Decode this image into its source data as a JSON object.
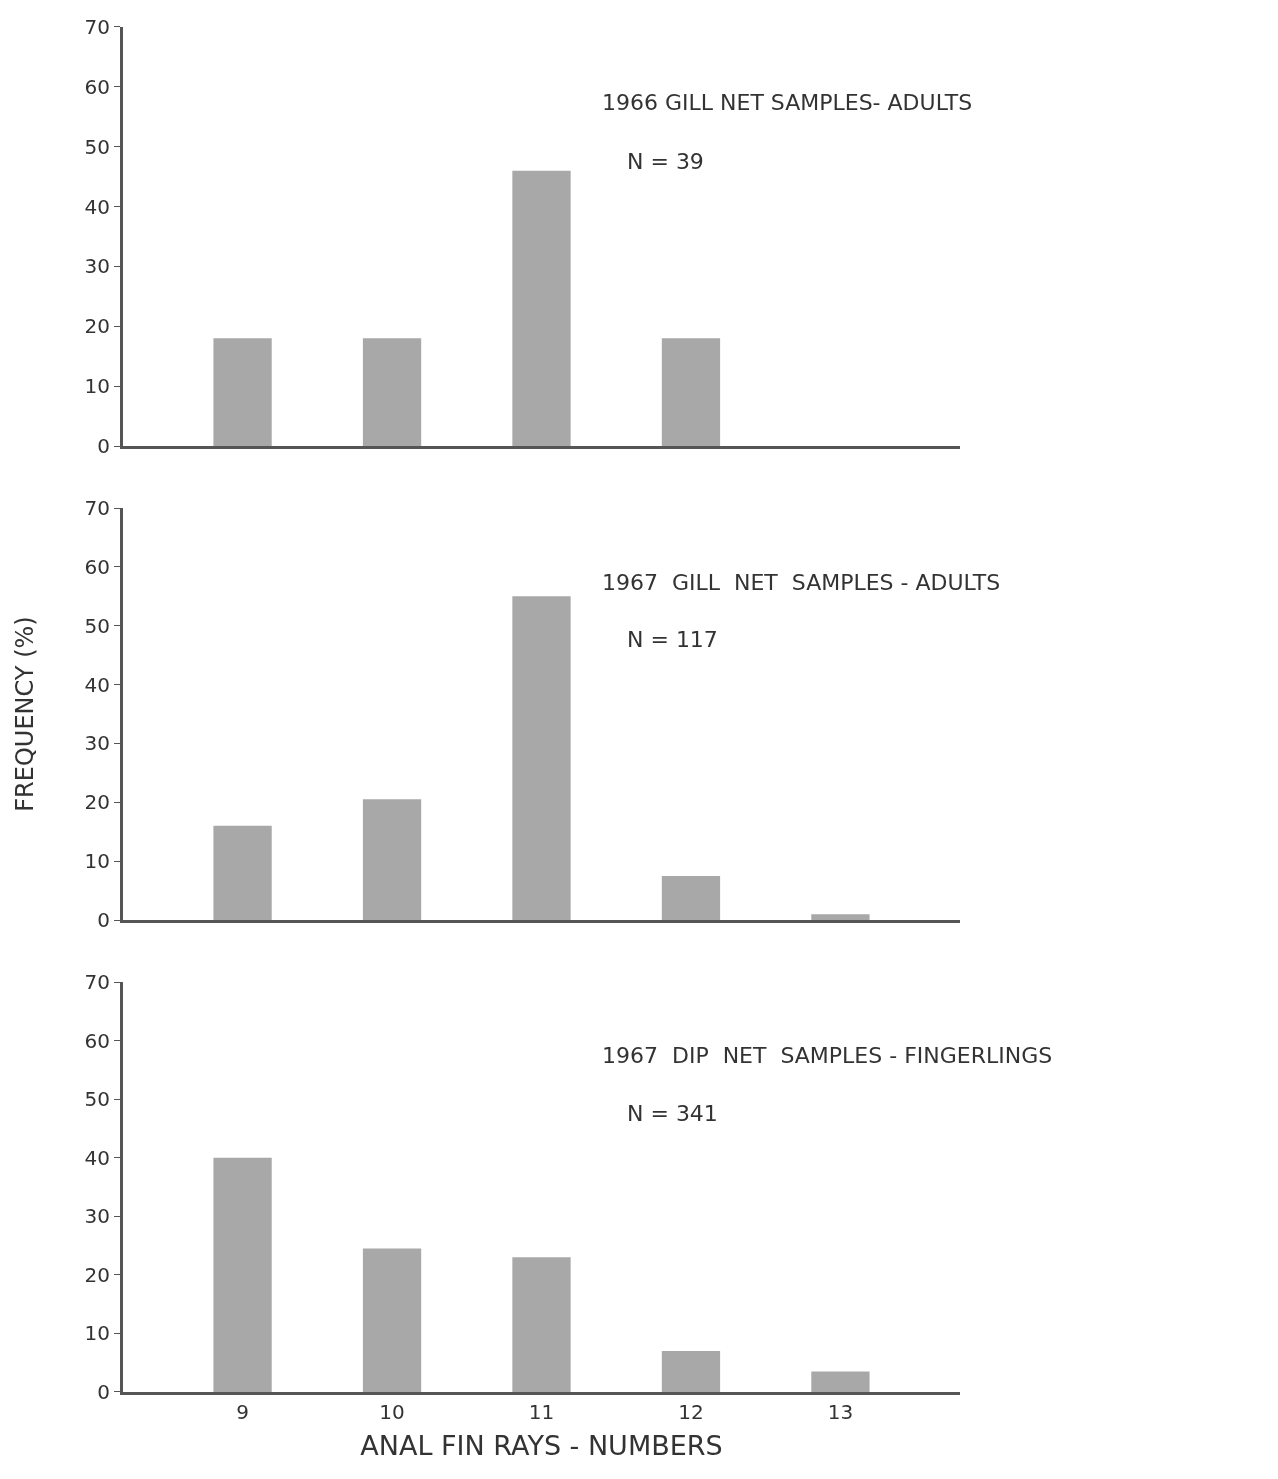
{
  "chart_data": [
    {
      "type": "bar",
      "title": "1966 GILL NET SAMPLES- ADULTS",
      "annotations": [
        "N = 39"
      ],
      "categories": [
        "9",
        "10",
        "11",
        "12",
        "13"
      ],
      "values": [
        18,
        18,
        46,
        18,
        0
      ],
      "color": "#a8a8a8",
      "ylim": [
        0,
        70
      ],
      "yticks": [
        0,
        10,
        20,
        30,
        40,
        50,
        60,
        70
      ],
      "tick_labels": "y"
    },
    {
      "type": "bar",
      "title": "1967  GILL  NET  SAMPLES - ADULTS",
      "annotations": [
        "N = 117"
      ],
      "ylabel": "FREQUENCY (%)",
      "categories": [
        "9",
        "10",
        "11",
        "12",
        "13"
      ],
      "values": [
        16,
        20.5,
        55,
        7.5,
        1
      ],
      "color": "#a8a8a8",
      "ylim": [
        0,
        70
      ],
      "yticks": [
        0,
        10,
        20,
        30,
        40,
        50,
        60,
        70
      ],
      "tick_labels": "y"
    },
    {
      "type": "bar",
      "title": "1967  DIP  NET  SAMPLES - FINGERLINGS",
      "annotations": [
        "N = 341"
      ],
      "xlabel": "ANAL FIN RAYS - NUMBERS",
      "categories": [
        "9",
        "10",
        "11",
        "12",
        "13"
      ],
      "values": [
        40,
        24.5,
        23,
        7,
        3.5
      ],
      "color": "#a8a8a8",
      "ylim": [
        0,
        70
      ],
      "yticks": [
        0,
        10,
        20,
        30,
        40,
        50,
        60,
        70
      ]
    }
  ]
}
